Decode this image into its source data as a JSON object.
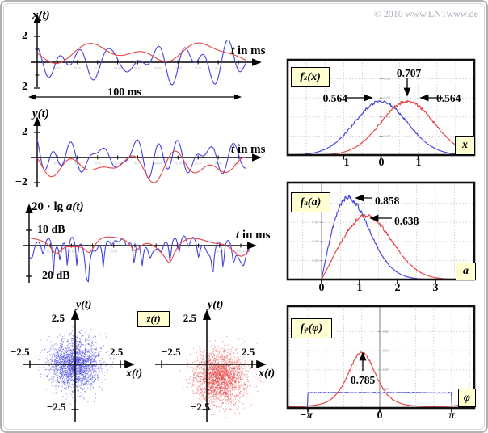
{
  "page": {
    "copyright": "© 2010 www.LNTwww.de"
  },
  "colors": {
    "red": "#e64545",
    "blue": "#4343dd",
    "box_bg": "#ffffd2",
    "grid": "#c8c8c8",
    "axis": "#000000",
    "pdf_axis": "#8a8a8a",
    "tiny": "#b4b4b4",
    "copyright": "#a7b0ba",
    "frame": "#101010"
  },
  "misc": {
    "z_label": {
      "var": "z",
      "arg": "(t)"
    }
  },
  "chart_data": [
    {
      "id": "xt",
      "type": "line",
      "title": {
        "var": "x",
        "arg": "(t)"
      },
      "xlabel": {
        "var": "t",
        "rest": " in ms"
      },
      "x_range_ms": [
        0,
        100
      ],
      "y_range": [
        -2.5,
        2.5
      ],
      "yticks": [
        {
          "v": 2,
          "label": "2"
        },
        {
          "v": -2,
          "label": "−2"
        }
      ],
      "xtick_step_ms": 10,
      "xtick_minor_labels": [
        "10.00",
        "20.00",
        "30.00",
        "40.00",
        "50.00",
        "60.00",
        "70.00",
        "80.00",
        "90.00",
        "100.00"
      ],
      "span_annotation": "100 ms",
      "series": [
        {
          "name": "rayleigh-channel",
          "color_key": "blue",
          "mean": 0,
          "sigma": 0.8,
          "freq": [
            0.04,
            0.13
          ],
          "ncomp": 8,
          "seed": 202
        },
        {
          "name": "rice-channel",
          "color_key": "red",
          "mean": 0.707,
          "sigma": 0.45,
          "freq": [
            0.015,
            0.06
          ],
          "ncomp": 6,
          "seed": 101
        }
      ]
    },
    {
      "id": "yt",
      "type": "line",
      "title": {
        "var": "y",
        "arg": "(t)"
      },
      "xlabel": {
        "var": "t",
        "rest": " in ms"
      },
      "x_range_ms": [
        0,
        100
      ],
      "y_range": [
        -2.5,
        2.5
      ],
      "yticks": [
        {
          "v": 2,
          "label": "2"
        },
        {
          "v": -2,
          "label": "−2"
        }
      ],
      "xtick_step_ms": 10,
      "xtick_minor_labels": [
        "10.00",
        "20.00",
        "30.00",
        "40.00",
        "50.00",
        "60.00",
        "70.00",
        "80.00",
        "90.00",
        "100.00"
      ],
      "series": [
        {
          "name": "rayleigh-channel",
          "color_key": "blue",
          "mean": 0,
          "sigma": 0.75,
          "freq": [
            0.04,
            0.13
          ],
          "ncomp": 8,
          "seed": 404
        },
        {
          "name": "rice-channel",
          "color_key": "red",
          "mean": -0.707,
          "sigma": 0.55,
          "freq": [
            0.015,
            0.06
          ],
          "ncomp": 6,
          "seed": 303
        }
      ]
    },
    {
      "id": "adb",
      "type": "line",
      "title": {
        "prefix": "20 · lg ",
        "var": "a",
        "arg": "(t)"
      },
      "xlabel": {
        "var": "t",
        "rest": " in ms"
      },
      "x_range_ms": [
        0,
        100
      ],
      "y_range_db": [
        -30,
        15
      ],
      "yticks": [
        {
          "v": 10,
          "label": "10 dB"
        },
        {
          "v": -20,
          "label": "−20 dB"
        }
      ],
      "xtick_step_ms": 10,
      "xtick_minor_labels": [
        "10.00",
        "20.00",
        "30.00",
        "40.00",
        "50.00",
        "60.00",
        "70.00",
        "80.00",
        "90.00",
        "100.00"
      ],
      "series": [
        {
          "name": "rayleigh-envelope-db",
          "color_key": "blue",
          "mean_x": 0,
          "mean_y": 0,
          "sigma": 0.707,
          "freq": [
            0.05,
            0.16
          ],
          "ncomp": 8,
          "seed": 617
        },
        {
          "name": "rice-envelope-db",
          "color_key": "red",
          "mean_x": 0.707,
          "mean_y": -0.707,
          "sigma": 0.45,
          "freq": [
            0.02,
            0.07
          ],
          "ncomp": 7,
          "seed": 515
        }
      ]
    },
    {
      "id": "scatter_blue",
      "type": "scatter",
      "xlabel": {
        "var": "x",
        "arg": "(t)"
      },
      "ylabel": {
        "var": "y",
        "arg": "(t)"
      },
      "ticks": [
        {
          "v": 2.5,
          "label": "2.5"
        },
        {
          "v": -2.5,
          "label": "−2.5"
        }
      ],
      "center": [
        0,
        0
      ],
      "sigma": 0.707,
      "n": 2300,
      "color_key": "blue",
      "seed": 707
    },
    {
      "id": "scatter_red",
      "type": "scatter",
      "xlabel": {
        "var": "x",
        "arg": "(t)"
      },
      "ylabel": {
        "var": "y",
        "arg": "(t)"
      },
      "ticks": [
        {
          "v": 2.5,
          "label": "2.5"
        },
        {
          "v": -2.5,
          "label": "−2.5"
        }
      ],
      "center": [
        0.707,
        -0.707
      ],
      "sigma": 0.707,
      "n": 2300,
      "color_key": "red",
      "seed": 808
    },
    {
      "id": "fx",
      "type": "line",
      "name_box": {
        "f": "f",
        "sub": "x",
        "arg": "(x)"
      },
      "corner": "x",
      "x_range": [
        -2.5,
        2.5
      ],
      "y_range": [
        0,
        1
      ],
      "xticks": [
        {
          "v": -1,
          "label": "−1"
        },
        {
          "v": 0,
          "label": "0"
        },
        {
          "v": 1,
          "label": "1"
        }
      ],
      "ytick_minor_labels": [
        "0.20",
        "0.40",
        "0.60",
        "0.80"
      ],
      "series": [
        {
          "name": "gaussian-blue",
          "dist": "gaussian",
          "mean": 0,
          "sigma": 0.707,
          "peak": 0.564,
          "color_key": "blue",
          "seed": 11
        },
        {
          "name": "gaussian-red",
          "dist": "gaussian",
          "mean": 0.707,
          "sigma": 0.707,
          "peak": 0.564,
          "color_key": "red",
          "seed": 12
        }
      ],
      "annotations": [
        {
          "text": "0.564"
        },
        {
          "text": "0.707"
        },
        {
          "text": "0.564"
        }
      ]
    },
    {
      "id": "fa",
      "type": "line",
      "name_box": {
        "f": "f",
        "sub": "a",
        "arg": "(a)"
      },
      "corner": "a",
      "x_range": [
        -0.9,
        4.0
      ],
      "y_range": [
        0,
        1
      ],
      "xticks": [
        {
          "v": 0,
          "label": "0"
        },
        {
          "v": 1,
          "label": "1"
        },
        {
          "v": 2,
          "label": "2"
        },
        {
          "v": 3,
          "label": "3"
        }
      ],
      "ytick_minor_labels": [
        "0.20",
        "0.40",
        "0.60",
        "0.80"
      ],
      "series": [
        {
          "name": "rayleigh-pdf",
          "dist": "rayleigh",
          "sigma": 0.707,
          "peak": 0.858,
          "color_key": "blue",
          "seed": 13
        },
        {
          "name": "rice-pdf",
          "dist": "rice",
          "s": 1,
          "sigma": 0.707,
          "peak": 0.638,
          "color_key": "red",
          "seed": 14
        }
      ],
      "annotations": [
        {
          "text": "0.858"
        },
        {
          "text": "0.638"
        }
      ]
    },
    {
      "id": "fphi",
      "type": "line",
      "name_box": {
        "f": "f",
        "sub": "φ",
        "arg": "(φ)"
      },
      "corner": "φ",
      "x_range": [
        -4.0,
        4.1
      ],
      "y_range": [
        0,
        1
      ],
      "xticks": [
        {
          "v": -3.1416,
          "label": "−π"
        },
        {
          "v": 0,
          "label": "0"
        },
        {
          "v": 3.1416,
          "label": "π"
        }
      ],
      "ytick_minor_labels": [
        "0.20",
        "0.40",
        "0.60",
        "0.80"
      ],
      "series": [
        {
          "name": "uniform-phase-pdf",
          "dist": "uniform",
          "level": 0.159,
          "color_key": "blue",
          "seed": 15
        },
        {
          "name": "rice-phase-pdf",
          "dist": "ricephase",
          "rho": 1.4142,
          "phi0": -0.7854,
          "color_key": "red",
          "seed": 16
        }
      ],
      "annotations": [
        {
          "text": "0.785"
        }
      ]
    }
  ]
}
